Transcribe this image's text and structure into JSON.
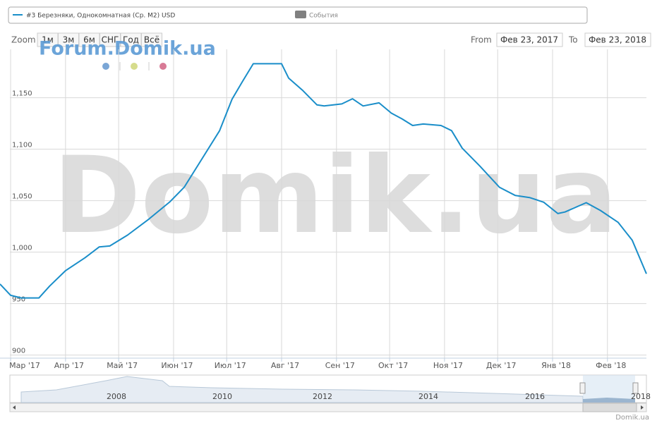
{
  "chart_data": {
    "type": "line",
    "series": [
      {
        "name": "#3 Березняки, Однокомнатная (Ср. М2) USD",
        "color": "#1a8ec9",
        "values": [
          969,
          958,
          955.5,
          955.5,
          967,
          982,
          994.5,
          1005,
          1006,
          1016.5,
          1032,
          1049,
          1063,
          1085,
          1118,
          1148.6,
          1166,
          1183,
          1183,
          1183,
          1169,
          1157,
          1143,
          1142,
          1144,
          1149,
          1142,
          1145,
          1135,
          1129.5,
          1123,
          1124.5,
          1123,
          1118,
          1101,
          1083.5,
          1063,
          1055,
          1053,
          1048.5,
          1037.5,
          1039,
          1048,
          1040.5,
          1029,
          1011.5,
          979
        ]
      }
    ],
    "x": [
      "2017-02-23",
      "2017-03-01",
      "2017-03-07",
      "2017-03-17",
      "2017-03-23",
      "2017-04-01",
      "2017-04-12",
      "2017-04-20",
      "2017-04-26",
      "2017-05-06",
      "2017-05-18",
      "2017-05-30",
      "2017-06-07",
      "2017-06-15",
      "2017-06-27",
      "2017-07-04",
      "2017-07-10",
      "2017-07-16",
      "2017-07-22",
      "2017-08-01",
      "2017-08-05",
      "2017-08-13",
      "2017-08-21",
      "2017-08-25",
      "2017-09-04",
      "2017-09-10",
      "2017-09-16",
      "2017-09-25",
      "2017-10-02",
      "2017-10-08",
      "2017-10-14",
      "2017-10-20",
      "2017-10-30",
      "2017-11-05",
      "2017-11-11",
      "2017-11-21",
      "2017-12-02",
      "2017-12-11",
      "2017-12-19",
      "2017-12-27",
      "2018-01-04",
      "2018-01-08",
      "2018-01-20",
      "2018-01-28",
      "2018-02-07",
      "2018-02-15",
      "2018-02-23"
    ],
    "xlim": [
      "2017-02-23",
      "2018-02-23"
    ],
    "xticks": [
      {
        "value": "2017-03-01",
        "label": "Мар '17"
      },
      {
        "value": "2017-04-01",
        "label": "Апр '17"
      },
      {
        "value": "2017-05-01",
        "label": "Май '17"
      },
      {
        "value": "2017-06-01",
        "label": "Июн '17"
      },
      {
        "value": "2017-07-01",
        "label": "Июл '17"
      },
      {
        "value": "2017-08-01",
        "label": "Авг '17"
      },
      {
        "value": "2017-09-01",
        "label": "Сен '17"
      },
      {
        "value": "2017-10-01",
        "label": "Окт '17"
      },
      {
        "value": "2017-11-01",
        "label": "Ноя '17"
      },
      {
        "value": "2017-12-01",
        "label": "Дек '17"
      },
      {
        "value": "2018-01-01",
        "label": "Янв '18"
      },
      {
        "value": "2018-02-01",
        "label": "Фев '18"
      }
    ],
    "ylim": [
      897,
      1197
    ],
    "yticks": [
      900,
      950,
      {
        "value": 1000,
        "label": "1,000"
      },
      {
        "value": 1050,
        "label": "1,050"
      },
      {
        "value": 1100,
        "label": "1,100"
      },
      {
        "value": 1150,
        "label": "1,150"
      }
    ],
    "grid": true,
    "events_legend": {
      "name": "События",
      "color": "#808080"
    },
    "range_selector": {
      "zoom_label": "Zoom",
      "buttons": [
        "1м",
        "3м",
        "6м",
        "СНГ",
        "Год",
        "Всё"
      ],
      "from_label": "From",
      "from": "Фев 23, 2017",
      "to_label": "To",
      "to": "Фев 23, 2018"
    },
    "navigator_labels": [
      "2008",
      "2010",
      "2012",
      "2014",
      "2016",
      "2018"
    ],
    "watermark": "Domik.ua",
    "forum_watermark": "Forum.Domik.ua",
    "credit": "Domik.ua"
  }
}
